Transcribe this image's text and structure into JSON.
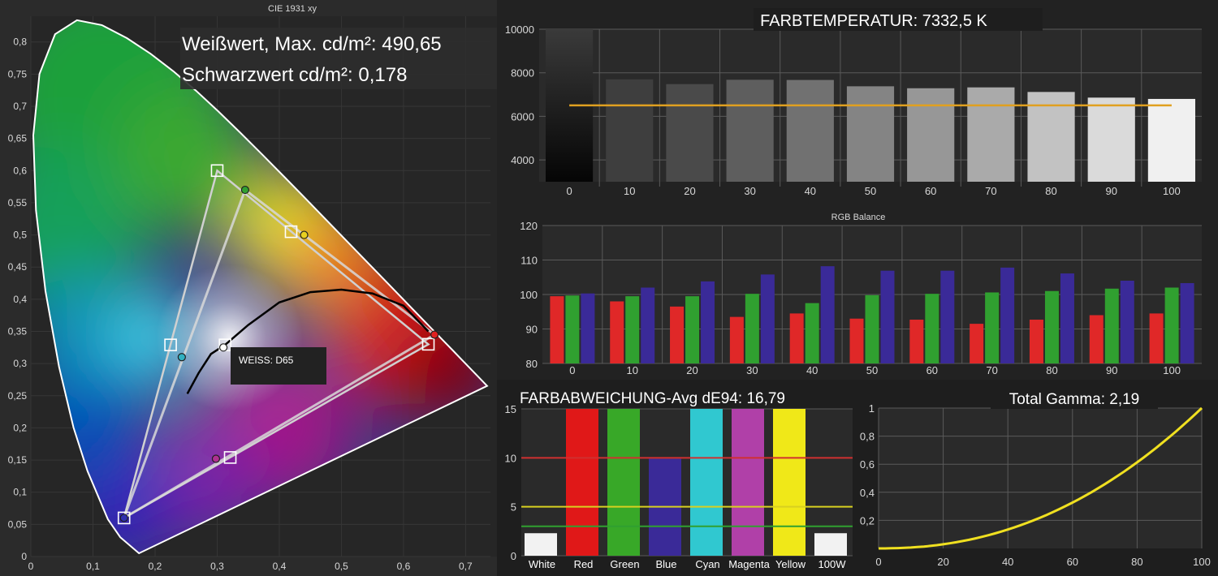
{
  "colors": {
    "background": "#1a1a1a",
    "panel": "#2b2b2b",
    "grid": "#5a5a5a",
    "axis_text": "#d8d8d8",
    "title_box": "#1e1e1e",
    "target_line": "#e0a020",
    "gamma_line": "#f0e020"
  },
  "chart_data": [
    {
      "type": "scatter",
      "title": "CIE 1931 xy",
      "overlay_lines": [
        "Weißwert, Max. cd/m²: 490,65",
        "Schwarzwert cd/m²: 0,178"
      ],
      "annotation": "WEISS: D65",
      "xlim": [
        0,
        0.74
      ],
      "ylim": [
        0,
        0.84
      ],
      "x_ticks": [
        "0",
        "0,1",
        "0,2",
        "0,3",
        "0,4",
        "0,5",
        "0,6",
        "0,7"
      ],
      "x_tick_values": [
        0,
        0.1,
        0.2,
        0.3,
        0.4,
        0.5,
        0.6,
        0.7
      ],
      "y_ticks": [
        "0",
        "0,05",
        "0,1",
        "0,15",
        "0,2",
        "0,25",
        "0,3",
        "0,35",
        "0,4",
        "0,45",
        "0,5",
        "0,55",
        "0,6",
        "0,65",
        "0,7",
        "0,75",
        "0,8"
      ],
      "y_tick_values": [
        0,
        0.05,
        0.1,
        0.15,
        0.2,
        0.25,
        0.3,
        0.35,
        0.4,
        0.45,
        0.5,
        0.55,
        0.6,
        0.65,
        0.7,
        0.75,
        0.8
      ],
      "locus": [
        [
          0.1741,
          0.005
        ],
        [
          0.144,
          0.03
        ],
        [
          0.1241,
          0.0578
        ],
        [
          0.0913,
          0.1327
        ],
        [
          0.0687,
          0.2007
        ],
        [
          0.0454,
          0.295
        ],
        [
          0.0235,
          0.4127
        ],
        [
          0.0082,
          0.5384
        ],
        [
          0.0039,
          0.6548
        ],
        [
          0.0139,
          0.7502
        ],
        [
          0.0389,
          0.812
        ],
        [
          0.0743,
          0.8338
        ],
        [
          0.1142,
          0.8262
        ],
        [
          0.1547,
          0.8059
        ],
        [
          0.1929,
          0.7816
        ],
        [
          0.2296,
          0.7543
        ],
        [
          0.2658,
          0.7243
        ],
        [
          0.3016,
          0.6923
        ],
        [
          0.3373,
          0.6589
        ],
        [
          0.3731,
          0.6245
        ],
        [
          0.4087,
          0.5896
        ],
        [
          0.4441,
          0.5547
        ],
        [
          0.4788,
          0.5202
        ],
        [
          0.5125,
          0.4866
        ],
        [
          0.5448,
          0.4544
        ],
        [
          0.5752,
          0.4242
        ],
        [
          0.6029,
          0.3965
        ],
        [
          0.627,
          0.3725
        ],
        [
          0.6482,
          0.3514
        ],
        [
          0.6658,
          0.334
        ],
        [
          0.6801,
          0.3197
        ],
        [
          0.6915,
          0.3083
        ],
        [
          0.7347,
          0.2653
        ]
      ],
      "purple_line": [
        [
          0.7347,
          0.2653
        ],
        [
          0.1741,
          0.005
        ]
      ],
      "reference_gamut": [
        [
          0.3,
          0.6
        ],
        [
          0.64,
          0.33
        ],
        [
          0.15,
          0.06
        ]
      ],
      "measured_gamut": [
        [
          0.345,
          0.57
        ],
        [
          0.65,
          0.345
        ],
        [
          0.15,
          0.06
        ]
      ],
      "targets": {
        "green": [
          0.3,
          0.6
        ],
        "yellow": [
          0.419,
          0.505
        ],
        "red": [
          0.64,
          0.33
        ],
        "magenta": [
          0.321,
          0.154
        ],
        "blue": [
          0.15,
          0.06
        ],
        "cyan": [
          0.225,
          0.329
        ],
        "white": [
          0.3127,
          0.329
        ]
      },
      "measured": {
        "green": [
          0.345,
          0.57
        ],
        "yellow": [
          0.44,
          0.5
        ],
        "red": [
          0.65,
          0.345
        ],
        "magenta": [
          0.298,
          0.152
        ],
        "blue": [
          0.15,
          0.06
        ],
        "cyan": [
          0.243,
          0.31
        ],
        "white": [
          0.31,
          0.325
        ]
      },
      "planckian": [
        [
          0.252,
          0.253
        ],
        [
          0.27,
          0.285
        ],
        [
          0.29,
          0.315
        ],
        [
          0.3127,
          0.329
        ],
        [
          0.35,
          0.36
        ],
        [
          0.4,
          0.395
        ],
        [
          0.45,
          0.411
        ],
        [
          0.5,
          0.415
        ],
        [
          0.55,
          0.409
        ],
        [
          0.6,
          0.39
        ],
        [
          0.64,
          0.35
        ]
      ]
    },
    {
      "type": "bar",
      "title": "FARBTEMPERATUR: 7332,5 K",
      "categories": [
        "0",
        "10",
        "20",
        "30",
        "40",
        "50",
        "60",
        "70",
        "80",
        "90",
        "100"
      ],
      "values": [
        10000,
        7700,
        7480,
        7680,
        7670,
        7380,
        7290,
        7330,
        7120,
        6860,
        6800
      ],
      "target": 6504,
      "ylim": [
        3000,
        10000
      ],
      "y_ticks": [
        4000,
        6000,
        8000,
        10000
      ],
      "bar_colors": [
        "#202020",
        "#3e3e3e",
        "#4a4a4a",
        "#5e5e5e",
        "#717171",
        "#848484",
        "#979797",
        "#aaaaaa",
        "#c2c2c2",
        "#dadada",
        "#f0f0f0"
      ]
    },
    {
      "type": "bar",
      "title": "RGB Balance",
      "categories": [
        "0",
        "10",
        "20",
        "30",
        "40",
        "50",
        "60",
        "70",
        "80",
        "90",
        "100"
      ],
      "ylim": [
        80,
        120
      ],
      "y_ticks": [
        80,
        90,
        100,
        110,
        120
      ],
      "series": [
        {
          "color": "#e02828",
          "values": [
            99.5,
            98,
            96.5,
            93.5,
            94.5,
            93,
            92.7,
            91.5,
            92.7,
            94,
            94.5
          ]
        },
        {
          "color": "#30a030",
          "values": [
            99.7,
            99.5,
            99.5,
            100.2,
            97.5,
            99.8,
            100.2,
            100.6,
            101,
            101.7,
            102
          ]
        },
        {
          "color": "#3a2a98",
          "values": [
            100.3,
            102,
            103.8,
            105.8,
            108.2,
            106.9,
            106.9,
            107.8,
            106.1,
            104,
            103.3
          ]
        }
      ]
    },
    {
      "type": "bar",
      "title": "FARBABWEICHUNG-Avg dE94: 16,79",
      "categories": [
        "White",
        "Red",
        "Green",
        "Blue",
        "Cyan",
        "Magenta",
        "Yellow",
        "100W"
      ],
      "values": [
        2.3,
        15,
        15,
        9.9,
        15,
        15,
        15,
        2.3
      ],
      "bar_colors": [
        "#f2f2f2",
        "#e01818",
        "#38a828",
        "#3a2a98",
        "#30c8d0",
        "#b040a8",
        "#f0e818",
        "#f2f2f2"
      ],
      "ylim": [
        0,
        15
      ],
      "y_ticks": [
        0,
        5,
        10,
        15
      ],
      "threshold_lines": [
        {
          "value": 10,
          "color": "#d03030"
        },
        {
          "value": 5,
          "color": "#d8d020"
        },
        {
          "value": 3,
          "color": "#30a030"
        }
      ]
    },
    {
      "type": "line",
      "title": "Total Gamma: 2,19",
      "xlim": [
        0,
        100
      ],
      "ylim": [
        0,
        1
      ],
      "x_ticks": [
        0,
        20,
        40,
        60,
        80,
        100
      ],
      "y_ticks": [
        "0,2",
        "0,4",
        "0,6",
        "0,8",
        "1"
      ],
      "y_tick_values": [
        0.2,
        0.4,
        0.6,
        0.8,
        1
      ],
      "gamma_measured": 2.19,
      "gamma_reference": 2.2
    }
  ]
}
